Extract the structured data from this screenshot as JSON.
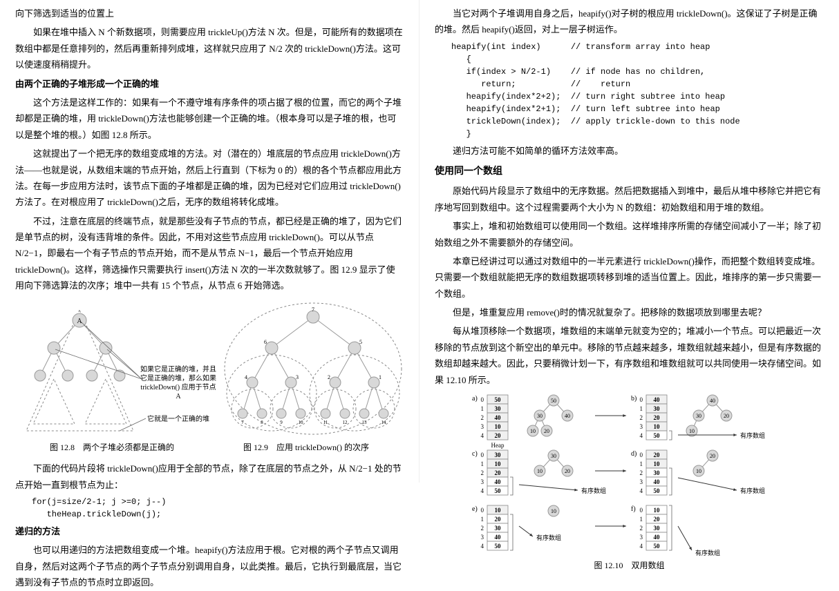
{
  "left": {
    "p1": "向下筛选到适当的位置上",
    "p2": "如果在堆中插入 N 个新数据项，则需要应用 trickleUp()方法 N 次。但是，可能所有的数据项在数组中都是任意排列的，然后再重新排列成堆，这样就只应用了 N/2 次的 trickleDown()方法。这可以使速度稍稍提升。",
    "p3": "由两个正确的子堆形成一个正确的堆",
    "p4": "这个方法是这样工作的：如果有一个不遵守堆有序条件的项占据了根的位置，而它的两个子堆却都是正确的堆，用 trickleDown()方法也能够创建一个正确的堆。（根本身可以是子堆的根，也可以是整个堆的根。）如图 12.8 所示。",
    "p5": "这就提出了一个把无序的数组变成堆的方法。对（潜在的）堆底层的节点应用 trickleDown()方法——也就是说，从数组末端的节点开始，然后上行直到（下标为 0 的）根的各个节点都应用此方法。在每一步应用方法时，该节点下面的子堆都是正确的堆，因为已经对它们应用过 trickleDown()方法了。在对根应用了 trickleDown()之后，无序的数组将转化成堆。",
    "p6": "不过，注意在底层的终端节点，就是那些没有子节点的节点，都已经是正确的堆了，因为它们是单节点的树，没有违背堆的条件。因此，不用对这些节点应用 trickleDown()。可以从节点 N/2−1，即最右一个有子节点的节点开始，而不是从节点 N−1，最后一个节点开始应用 trickleDown()。这样，筛选操作只需要执行 insert()方法 N 次的一半次数就够了。图 12.9 显示了使用向下筛选算法的次序；堆中一共有 15 个节点，从节点 6 开始筛选。",
    "fig128_label1": "如果它是正确的堆，并且它是正确的堆，那么如果 trickleDown() 应用于节点 A",
    "fig128_label2": "它就是一个正确的堆",
    "cap128": "图 12.8　两个子堆必须都是正确的",
    "cap129": "图 12.9　应用 trickleDown() 的次序",
    "p7": "下面的代码片段将 trickleDown()应用于全部的节点，除了在底层的节点之外，从 N/2−1 处的节点开始一直到根节点为止：",
    "code1": "for(j=size/2-1; j >=0; j--)\n   theHeap.trickleDown(j);",
    "h_recur": "递归的方法",
    "p8": "也可以用递归的方法把数组变成一个堆。heapify()方法应用于根。它对根的两个子节点又调用自身，然后对这两个子节点的两个子节点分别调用自身，以此类推。最后，它执行到最底层，当它遇到没有子节点的节点时立即返回。"
  },
  "right": {
    "p1": "当它对两个子堆调用自身之后，heapify()对子树的根应用 trickleDown()。这保证了子树是正确的堆。然后 heapify()返回，对上一层子树运作。",
    "code1": "heapify(int index)      // transform array into heap\n   {\n   if(index > N/2-1)    // if node has no children,\n      return;           //    return\n   heapify(index*2+2);  // turn right subtree into heap\n   heapify(index*2+1);  // turn left subtree into heap\n   trickleDown(index);  // apply trickle-down to this node\n   }",
    "p2": "递归方法可能不如简单的循环方法效率高。",
    "h_same": "使用同一个数组",
    "p3": "原始代码片段显示了数组中的无序数据。然后把数据插入到堆中，最后从堆中移除它并把它有序地写回到数组中。这个过程需要两个大小为 N 的数组：初始数组和用于堆的数组。",
    "p4": "事实上，堆和初始数组可以使用同一个数组。这样堆排序所需的存储空间减小了一半；除了初始数组之外不需要额外的存储空间。",
    "p5": "本章已经讲过可以通过对数组中的一半元素进行 trickleDown()操作，而把整个数组转变成堆。只需要一个数组就能把无序的数组数据项转移到堆的适当位置上。因此，堆排序的第一步只需要一个数组。",
    "p6": "但是，堆重复应用 remove()时的情况就复杂了。把移除的数据项放到哪里去呢？",
    "p7": "每从堆顶移除一个数据项，堆数组的末端单元就变为空的；堆减小一个节点。可以把最近一次移除的节点放到这个新空出的单元中。移除的节点越来越多，堆数组就越来越小，但是有序数据的数组却越来越大。因此，只要稍微计划一下，有序数组和堆数组就可以共同使用一块存储空间。如果 12.10 所示。",
    "cap1210": "图 12.10　双用数组",
    "fig_label_heap": "Heap",
    "fig_label_sorted": "有序数组",
    "arrays": {
      "a": [
        "50",
        "30",
        "40",
        "10",
        "20"
      ],
      "b": [
        "40",
        "30",
        "20",
        "10",
        "50"
      ],
      "c": [
        "30",
        "10",
        "20",
        "40",
        "50"
      ],
      "d": [
        "20",
        "10",
        "30",
        "40",
        "50"
      ],
      "e": [
        "10",
        "20",
        "30",
        "40",
        "50"
      ],
      "f": [
        "10",
        "20",
        "30",
        "40",
        "50"
      ]
    }
  },
  "colors": {
    "node_fill": "#d8d8d8",
    "node_stroke": "#999",
    "dash": "#888",
    "text": "#000",
    "box_fill": "#f0f0f0",
    "box_stroke": "#888",
    "arrow": "#333"
  }
}
